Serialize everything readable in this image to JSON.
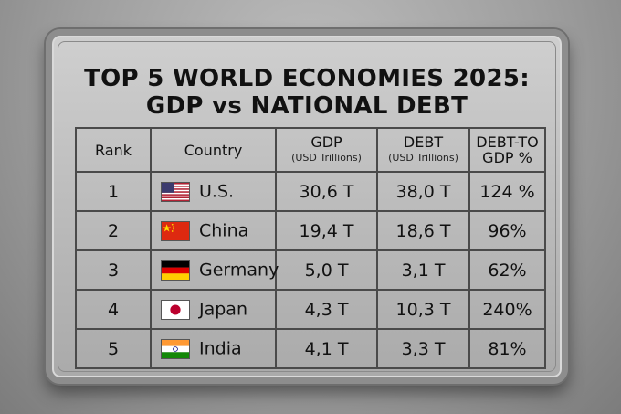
{
  "title_line1": "TOP 5 WORLD ECONOMIES 2025:",
  "title_line2": "GDP vs NATIONAL DEBT",
  "headers": {
    "rank": "Rank",
    "country": "Country",
    "gdp": "GDP",
    "gdp_unit": "(USD Trillions)",
    "debt": "DEBT",
    "debt_unit": "(USD Trillions)",
    "ratio_line1": "DEBT-TO",
    "ratio_line2": "GDP %"
  },
  "chart_data": {
    "type": "table",
    "columns": [
      "Rank",
      "Country",
      "GDP (USD Trillions)",
      "DEBT (USD Trillions)",
      "DEBT-TO GDP %"
    ],
    "rows": [
      {
        "rank": "1",
        "country": "U.S.",
        "flag": "usa-flag-icon",
        "gdp": "30,6 T",
        "debt": "38,0 T",
        "ratio": "124 %"
      },
      {
        "rank": "2",
        "country": "China",
        "flag": "china-flag-icon",
        "gdp": "19,4 T",
        "debt": "18,6 T",
        "ratio": "96%"
      },
      {
        "rank": "3",
        "country": "Germany",
        "flag": "germany-flag-icon",
        "gdp": "5,0 T",
        "debt": "3,1 T",
        "ratio": "62%"
      },
      {
        "rank": "4",
        "country": "Japan",
        "flag": "japan-flag-icon",
        "gdp": "4,3 T",
        "debt": "10,3 T",
        "ratio": "240%"
      },
      {
        "rank": "5",
        "country": "India",
        "flag": "india-flag-icon",
        "gdp": "4,1 T",
        "debt": "3,3 T",
        "ratio": "81%"
      }
    ]
  }
}
